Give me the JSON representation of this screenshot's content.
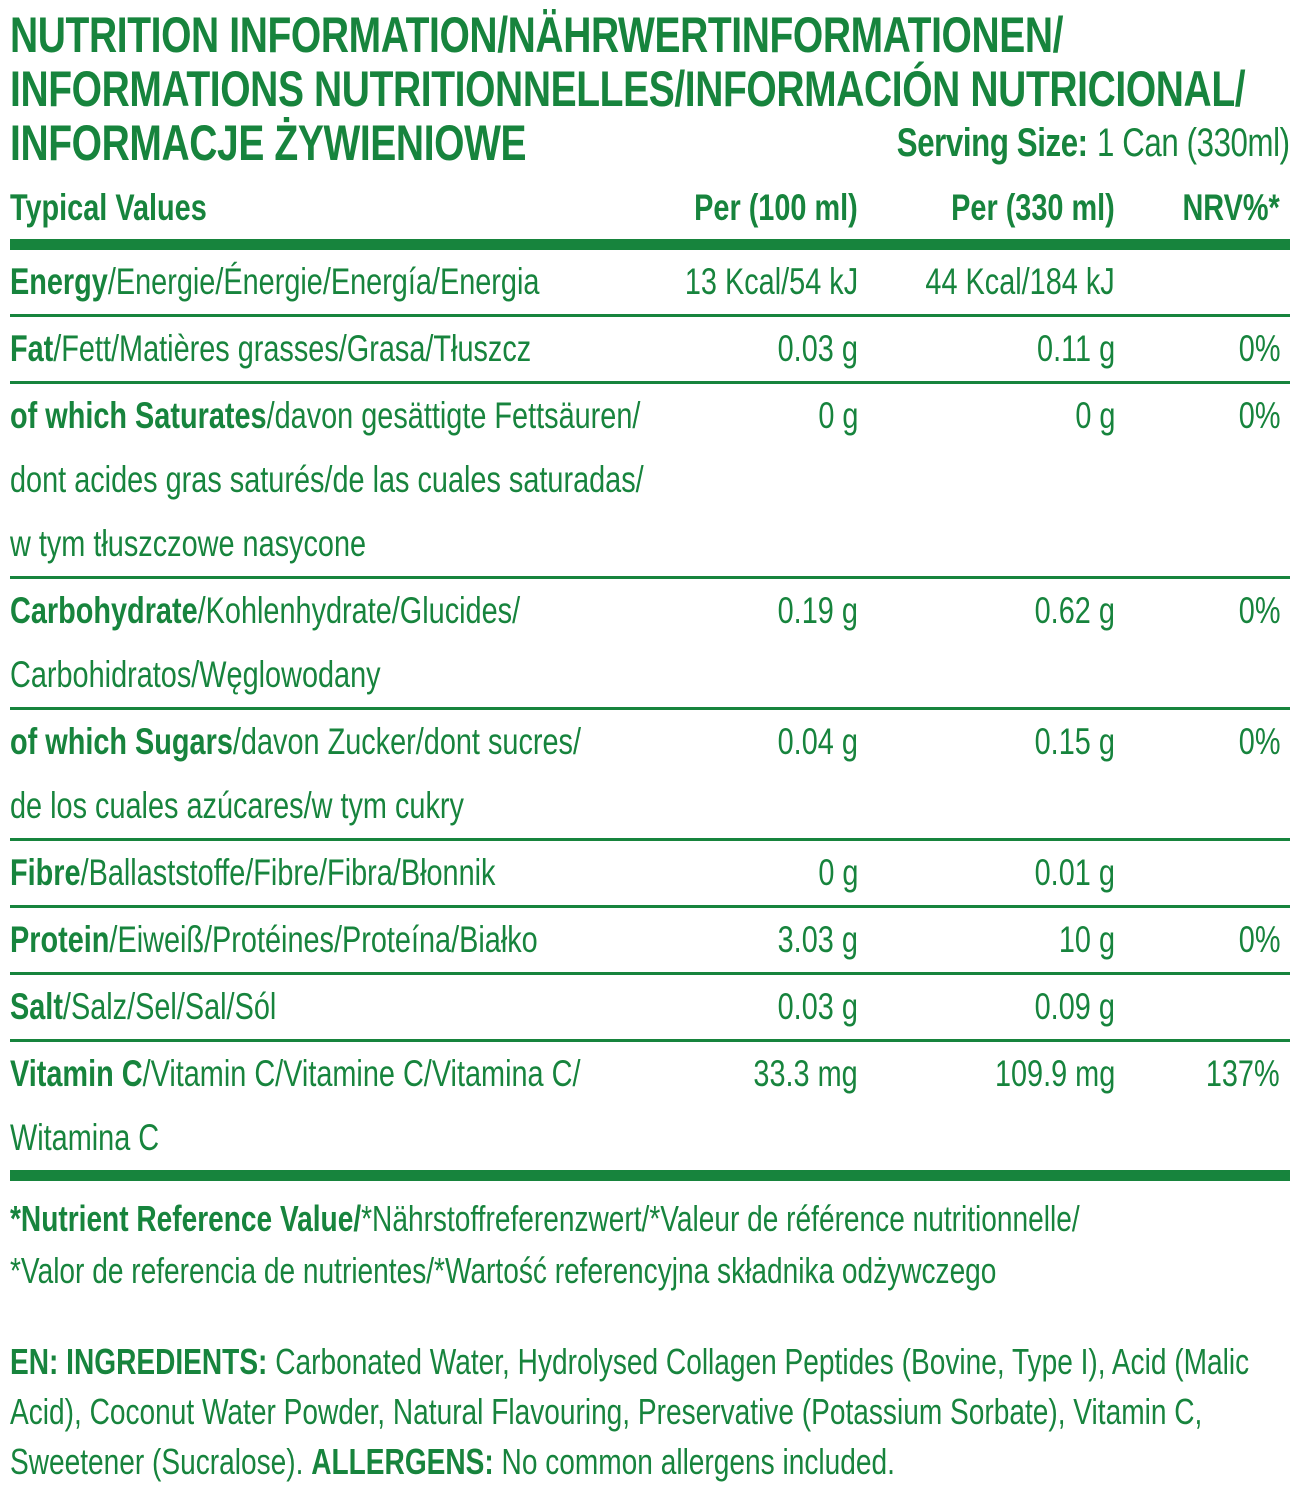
{
  "colors": {
    "green": "#17843d"
  },
  "title_lines": [
    "NUTRITION INFORMATION/NÄHRWERTINFORMATIONEN/",
    "INFORMATIONS NUTRITIONNELLES/INFORMACIÓN NUTRICIONAL/",
    "INFORMACJE ŻYWIENIOWE"
  ],
  "serving": {
    "label": "Serving Size:",
    "value": "1 Can (330ml)"
  },
  "columns": {
    "label": "Typical Values",
    "per100": "Per (100 ml)",
    "per330": "Per (330 ml)",
    "nrv": "NRV%*"
  },
  "rows": [
    {
      "bold": "Energy",
      "rest": "/Energie/Énergie/Energía/Energia",
      "per100": "13 Kcal/54 kJ",
      "per330": "44 Kcal/184 kJ",
      "nrv": ""
    },
    {
      "bold": "Fat",
      "rest": "/Fett/Matières grasses/Grasa/Tłuszcz",
      "per100": "0.03 g",
      "per330": "0.11 g",
      "nrv": "0%"
    },
    {
      "bold": "of which Saturates",
      "rest": "/davon gesättigte Fettsäuren/",
      "extra": "dont acides gras saturés/de las cuales saturadas/\nw tym tłuszczowe nasycone",
      "per100": "0 g",
      "per330": "0 g",
      "nrv": "0%"
    },
    {
      "bold": "Carbohydrate",
      "rest": "/Kohlenhydrate/Glucides/",
      "extra": "Carbohidratos/Węglowodany",
      "per100": "0.19 g",
      "per330": "0.62 g",
      "nrv": "0%"
    },
    {
      "bold": "of which Sugars",
      "rest": "/davon Zucker/dont sucres/",
      "extra": "de los cuales azúcares/w tym cukry",
      "per100": "0.04 g",
      "per330": "0.15 g",
      "nrv": "0%"
    },
    {
      "bold": "Fibre",
      "rest": "/Ballaststoffe/Fibre/Fibra/Błonnik",
      "per100": "0 g",
      "per330": "0.01 g",
      "nrv": ""
    },
    {
      "bold": "Protein",
      "rest": "/Eiweiß/Protéines/Proteína/Białko",
      "per100": "3.03 g",
      "per330": "10 g",
      "nrv": "0%"
    },
    {
      "bold": "Salt",
      "rest": "/Salz/Sel/Sal/Sól",
      "per100": "0.03 g",
      "per330": "0.09 g",
      "nrv": ""
    },
    {
      "bold": "Vitamin C",
      "rest": "/Vitamin C/Vitamine C/Vitamina C/",
      "extra": "Witamina C",
      "per100": "33.3 mg",
      "per330": "109.9 mg",
      "nrv": "137%"
    }
  ],
  "footnote": {
    "bold": "*Nutrient Reference Value/",
    "rest": "*Nährstoffreferenzwert/*Valeur de référence nutritionnelle/\n*Valor de referencia de nutrientes/*Wartość referencyjna składnika odżywczego"
  },
  "ingredients": {
    "lang_label": "EN: INGREDIENTS:",
    "text": " Carbonated Water, Hydrolysed Collagen Peptides (Bovine, Type I), Acid (Malic Acid), Coconut Water Powder, Natural Flavouring, Preservative (Potassium Sorbate), Vitamin C, Sweetener (Sucralose). ",
    "allergens_label": "ALLERGENS:",
    "allergens_text": " No common allergens included."
  }
}
